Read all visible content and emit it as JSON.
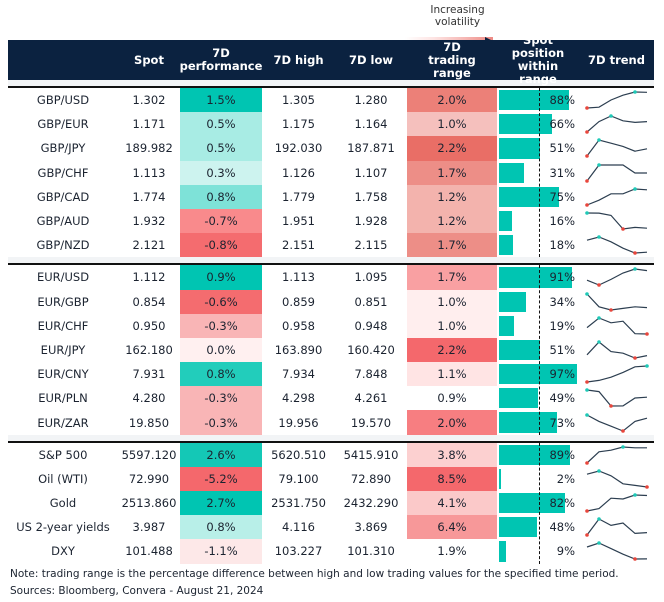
{
  "legend": {
    "label": "Increasing volatility"
  },
  "headers": [
    "",
    "Spot",
    "7D performance",
    "7D high",
    "7D low",
    "7D trading range",
    "Spot position within range",
    "7D trend"
  ],
  "colors": {
    "header_bg": "#0b2240",
    "bar": "#00c5b2",
    "trend_line": "#2c3e50",
    "max_marker": "#1fc9b7",
    "min_marker": "#e8463c"
  },
  "groups": [
    {
      "rows": [
        {
          "name": "GBP/USD",
          "spot": "1.302",
          "perf": "1.5%",
          "perf_color": "#00c5b2",
          "high": "1.305",
          "low": "1.280",
          "range": "2.0%",
          "range_color": "#ec8078",
          "position": 88,
          "position_label": "88%",
          "trend": [
            0,
            0.05,
            0.5,
            0.8,
            1,
            0.98
          ]
        },
        {
          "name": "GBP/EUR",
          "spot": "1.171",
          "perf": "0.5%",
          "perf_color": "#a8ece4",
          "high": "1.175",
          "low": "1.164",
          "range": "1.0%",
          "range_color": "#f5c0bd",
          "position": 66,
          "position_label": "66%",
          "trend": [
            0,
            0.65,
            1,
            0.7,
            0.6,
            0.65
          ]
        },
        {
          "name": "GBP/JPY",
          "spot": "189.982",
          "perf": "0.5%",
          "perf_color": "#a8ece4",
          "high": "192.030",
          "low": "187.871",
          "range": "2.2%",
          "range_color": "#e96e66",
          "position": 51,
          "position_label": "51%",
          "trend": [
            0,
            1,
            0.8,
            0.6,
            0.3,
            0.45
          ]
        },
        {
          "name": "GBP/CHF",
          "spot": "1.113",
          "perf": "0.3%",
          "perf_color": "#cdf3ef",
          "high": "1.126",
          "low": "1.107",
          "range": "1.7%",
          "range_color": "#ed8e87",
          "position": 31,
          "position_label": "31%",
          "trend": [
            0,
            1,
            1,
            1,
            0.5,
            0.5
          ]
        },
        {
          "name": "GBP/CAD",
          "spot": "1.774",
          "perf": "0.8%",
          "perf_color": "#7ee2d8",
          "high": "1.779",
          "low": "1.758",
          "range": "1.2%",
          "range_color": "#f3b3ad",
          "position": 75,
          "position_label": "75%",
          "trend": [
            0,
            0.3,
            0.7,
            0.7,
            1,
            0.95
          ]
        },
        {
          "name": "GBP/AUD",
          "spot": "1.932",
          "perf": "-0.7%",
          "perf_color": "#f98a8c",
          "high": "1.951",
          "low": "1.928",
          "range": "1.2%",
          "range_color": "#f3b3ad",
          "position": 16,
          "position_label": "16%",
          "trend": [
            1,
            0.99,
            0.85,
            0,
            0.1,
            0.05
          ]
        },
        {
          "name": "GBP/NZD",
          "spot": "2.121",
          "perf": "-0.8%",
          "perf_color": "#f46c6f",
          "high": "2.151",
          "low": "2.115",
          "range": "1.7%",
          "range_color": "#ed8e87",
          "position": 18,
          "position_label": "18%",
          "trend": [
            0.8,
            1,
            0.7,
            0.3,
            0,
            0.05
          ]
        }
      ]
    },
    {
      "rows": [
        {
          "name": "EUR/USD",
          "spot": "1.112",
          "perf": "0.9%",
          "perf_color": "#00c5b2",
          "high": "1.113",
          "low": "1.095",
          "range": "1.7%",
          "range_color": "#f9a0a2",
          "position": 91,
          "position_label": "91%",
          "trend": [
            0.3,
            0,
            0.35,
            0.75,
            1,
            0.9
          ]
        },
        {
          "name": "EUR/GBP",
          "spot": "0.854",
          "perf": "-0.6%",
          "perf_color": "#f46c6f",
          "high": "0.859",
          "low": "0.851",
          "range": "1.0%",
          "range_color": "#ffeeee",
          "position": 34,
          "position_label": "34%",
          "trend": [
            1,
            0.2,
            0,
            0.1,
            0.2,
            0.15
          ]
        },
        {
          "name": "EUR/CHF",
          "spot": "0.950",
          "perf": "-0.3%",
          "perf_color": "#f9b5b6",
          "high": "0.958",
          "low": "0.948",
          "range": "1.0%",
          "range_color": "#ffeeee",
          "position": 19,
          "position_label": "19%",
          "trend": [
            0.4,
            1,
            0.7,
            0.8,
            0.02,
            0
          ]
        },
        {
          "name": "EUR/JPY",
          "spot": "162.180",
          "perf": "0.0%",
          "perf_color": "#fff0f0",
          "high": "163.890",
          "low": "160.420",
          "range": "2.2%",
          "range_color": "#f4686c",
          "position": 51,
          "position_label": "51%",
          "trend": [
            0.2,
            1,
            0.4,
            0.3,
            0,
            0.15
          ]
        },
        {
          "name": "EUR/CNY",
          "spot": "7.931",
          "perf": "0.8%",
          "perf_color": "#22cdbb",
          "high": "7.934",
          "low": "7.848",
          "range": "1.1%",
          "range_color": "#ffe4e4",
          "position": 97,
          "position_label": "97%",
          "trend": [
            0,
            0.1,
            0.3,
            0.6,
            0.95,
            1
          ]
        },
        {
          "name": "EUR/PLN",
          "spot": "4.280",
          "perf": "-0.3%",
          "perf_color": "#f9b5b6",
          "high": "4.298",
          "low": "4.261",
          "range": "0.9%",
          "range_color": "#ffffff",
          "position": 49,
          "position_label": "49%",
          "trend": [
            1,
            0.9,
            0,
            0.01,
            0.5,
            0.55
          ]
        },
        {
          "name": "EUR/ZAR",
          "spot": "19.850",
          "perf": "-0.3%",
          "perf_color": "#f9b5b6",
          "high": "19.956",
          "low": "19.570",
          "range": "2.0%",
          "range_color": "#f77e81",
          "position": 73,
          "position_label": "73%",
          "trend": [
            1,
            0.6,
            0.3,
            0,
            0.6,
            0.8
          ]
        }
      ]
    },
    {
      "rows": [
        {
          "name": "S&P 500",
          "spot": "5597.120",
          "perf": "2.6%",
          "perf_color": "#14c8b6",
          "high": "5620.510",
          "low": "5415.910",
          "range": "3.8%",
          "range_color": "#fcd0d0",
          "position": 89,
          "position_label": "89%",
          "trend": [
            0,
            0.7,
            0.8,
            1,
            0.95,
            0.95
          ]
        },
        {
          "name": "Oil (WTI)",
          "spot": "72.990",
          "perf": "-5.2%",
          "perf_color": "#f4686c",
          "high": "79.100",
          "low": "72.890",
          "range": "8.5%",
          "range_color": "#f4686c",
          "position": 2,
          "position_label": "2%",
          "trend": [
            0.8,
            1,
            0.7,
            0.2,
            0.1,
            0
          ]
        },
        {
          "name": "Gold",
          "spot": "2513.860",
          "perf": "2.7%",
          "perf_color": "#00c5b2",
          "high": "2531.750",
          "low": "2432.290",
          "range": "4.1%",
          "range_color": "#fbc9c9",
          "position": 82,
          "position_label": "82%",
          "trend": [
            0,
            0.15,
            0.8,
            0.75,
            1,
            0.97
          ]
        },
        {
          "name": "US 2-year yields",
          "spot": "3.987",
          "perf": "0.8%",
          "perf_color": "#b8efe8",
          "high": "4.116",
          "low": "3.869",
          "range": "6.4%",
          "range_color": "#f79899",
          "position": 48,
          "position_label": "48%",
          "trend": [
            0,
            1,
            0.6,
            0.75,
            0.1,
            0.15
          ]
        },
        {
          "name": "DXY",
          "spot": "101.488",
          "perf": "-1.1%",
          "perf_color": "#fde8e8",
          "high": "103.227",
          "low": "101.310",
          "range": "1.9%",
          "range_color": "#ffffff",
          "position": 9,
          "position_label": "9%",
          "trend": [
            0.75,
            1,
            0.65,
            0.3,
            0,
            0.01
          ]
        }
      ]
    }
  ],
  "footer": {
    "note": "Note: trading range is the percentage difference between high and low trading values for the specified time period.",
    "sources": "Sources: Bloomberg, Convera - August 21, 2024"
  }
}
